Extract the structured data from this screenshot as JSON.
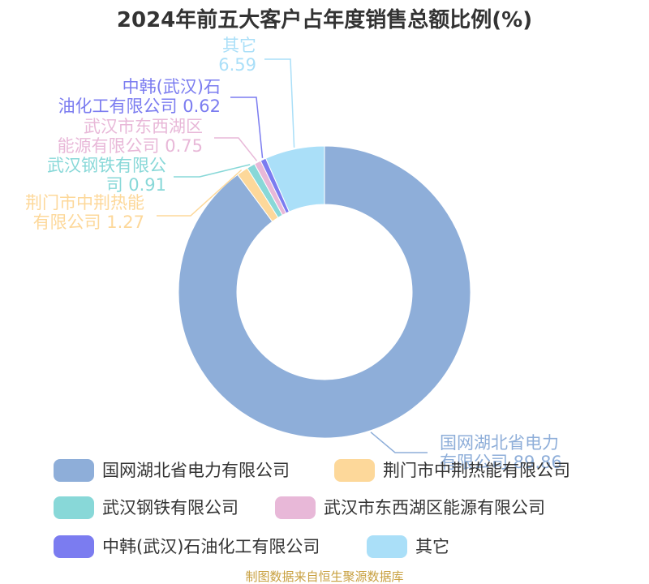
{
  "chart_data": {
    "type": "pie",
    "donut": true,
    "title": "2024年前五大客户占年度销售总额比例(%)",
    "slices": [
      {
        "name": "国网湖北省电力有限公司",
        "value": 89.86,
        "color": "#8eaed9",
        "label_lines": [
          "国网湖北省电力",
          "有限公司 89.86"
        ]
      },
      {
        "name": "荆门市中荆热能有限公司",
        "value": 1.27,
        "color": "#fdd89a",
        "label_lines": [
          "荆门市中荆热能",
          "有限公司 1.27"
        ]
      },
      {
        "name": "武汉钢铁有限公司",
        "value": 0.91,
        "color": "#88d8d8",
        "label_lines": [
          "武汉钢铁有限公",
          "司 0.91"
        ]
      },
      {
        "name": "武汉市东西湖区能源有限公司",
        "value": 0.75,
        "color": "#e8b8d8",
        "label_lines": [
          "武汉市东西湖区",
          "能源有限公司 0.75"
        ]
      },
      {
        "name": "中韩(武汉)石油化工有限公司",
        "value": 0.62,
        "color": "#7b7cf0",
        "label_lines": [
          "中韩(武汉)石",
          "油化工有限公司 0.62"
        ]
      },
      {
        "name": "其它",
        "value": 6.59,
        "color": "#aadff8",
        "label_lines": [
          "其它",
          "6.59"
        ]
      }
    ],
    "legend_position": "bottom"
  },
  "source": "制图数据来自恒生聚源数据库"
}
